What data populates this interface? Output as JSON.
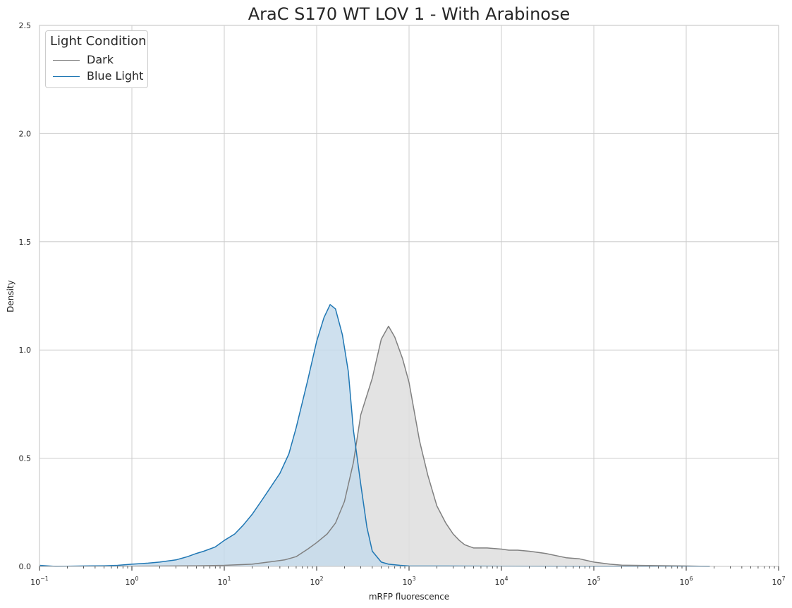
{
  "chart_data": {
    "type": "area",
    "title": "AraC S170 WT LOV 1 - With Arabinose",
    "xlabel": "mRFP fluorescence",
    "ylabel": "Density",
    "xscale": "log",
    "xlim": [
      0.1,
      10000000
    ],
    "ylim": [
      0,
      2.5
    ],
    "yticks": [
      "0.0",
      "0.5",
      "1.0",
      "1.5",
      "2.0",
      "2.5"
    ],
    "xtick_bases": [
      "10",
      "10",
      "10",
      "10",
      "10",
      "10",
      "10",
      "10",
      "10"
    ],
    "xtick_exps": [
      "−1",
      "0",
      "1",
      "2",
      "3",
      "4",
      "5",
      "6",
      "7"
    ],
    "grid": true,
    "legend": {
      "title": "Light Condition",
      "placement": "upper-left",
      "entries": [
        "Dark",
        "Blue Light"
      ]
    },
    "series": [
      {
        "name": "Dark",
        "color": "#808080",
        "fill": "#dedede",
        "x": [
          0.1,
          1,
          5,
          10,
          20,
          30,
          45,
          60,
          80,
          100,
          130,
          160,
          200,
          250,
          300,
          400,
          500,
          600,
          700,
          850,
          1000,
          1300,
          1600,
          2000,
          2500,
          3000,
          3500,
          4000,
          5000,
          7000,
          10000,
          12000,
          15000,
          20000,
          30000,
          50000,
          70000,
          100000,
          150000,
          200000,
          400000,
          1000000,
          1800000
        ],
        "y": [
          0.0,
          0.001,
          0.003,
          0.005,
          0.01,
          0.02,
          0.03,
          0.045,
          0.08,
          0.11,
          0.15,
          0.2,
          0.3,
          0.48,
          0.7,
          0.87,
          1.05,
          1.11,
          1.06,
          0.96,
          0.85,
          0.58,
          0.42,
          0.28,
          0.2,
          0.15,
          0.12,
          0.1,
          0.085,
          0.085,
          0.08,
          0.075,
          0.075,
          0.07,
          0.06,
          0.04,
          0.035,
          0.02,
          0.01,
          0.006,
          0.004,
          0.002,
          0.0
        ]
      },
      {
        "name": "Blue Light",
        "color": "#1f77b4",
        "fill": "#c5dbeb",
        "x": [
          0.1,
          0.15,
          0.3,
          0.5,
          0.7,
          1,
          1.5,
          2,
          3,
          4,
          5,
          6,
          8,
          10,
          13,
          16,
          20,
          25,
          30,
          40,
          50,
          60,
          80,
          100,
          120,
          140,
          160,
          190,
          220,
          250,
          300,
          350,
          400,
          500,
          600,
          800,
          1000,
          10000,
          100000,
          1000000,
          1800000
        ],
        "y": [
          0.005,
          0.0,
          0.002,
          0.003,
          0.005,
          0.01,
          0.015,
          0.02,
          0.03,
          0.045,
          0.06,
          0.07,
          0.09,
          0.12,
          0.15,
          0.19,
          0.24,
          0.3,
          0.35,
          0.43,
          0.52,
          0.64,
          0.86,
          1.04,
          1.15,
          1.21,
          1.19,
          1.07,
          0.9,
          0.63,
          0.38,
          0.18,
          0.07,
          0.02,
          0.01,
          0.005,
          0.002,
          0.001,
          0.0,
          0.0,
          0.0
        ]
      }
    ]
  }
}
